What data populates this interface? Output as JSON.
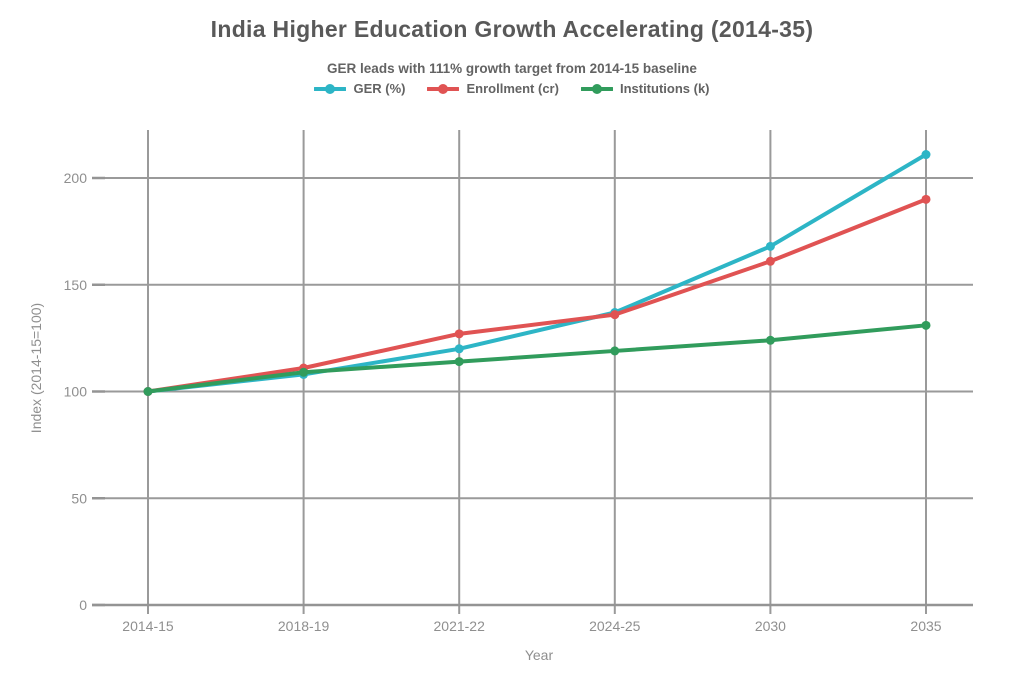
{
  "chart_data": {
    "type": "line",
    "title": "India Higher Education Growth Accelerating (2014-35)",
    "subtitle": "GER leads with 111% growth target from 2014-15 baseline",
    "xlabel": "Year",
    "ylabel": "Index (2014-15=100)",
    "categories": [
      "2014-15",
      "2018-19",
      "2021-22",
      "2024-25",
      "2030",
      "2035"
    ],
    "series": [
      {
        "name": "GER (%)",
        "color": "#2db5c6",
        "values": [
          100,
          108,
          120,
          137,
          168,
          211
        ]
      },
      {
        "name": "Enrollment (cr)",
        "color": "#e05353",
        "values": [
          100,
          111,
          127,
          136,
          161,
          190
        ]
      },
      {
        "name": "Institutions (k)",
        "color": "#319c5c",
        "values": [
          100,
          109,
          114,
          119,
          124,
          131
        ]
      }
    ],
    "yticks": [
      0,
      50,
      100,
      150,
      200
    ],
    "ylim": [
      0,
      222
    ],
    "grid": true,
    "legend_position": "top-center",
    "marker": "circle"
  },
  "style": {
    "background": "#ffffff",
    "grid_color": "#9a9a9a",
    "axis_color": "#949494",
    "tick_label_color": "#8f8f8f",
    "title_color": "#595959",
    "subtitle_color": "#636363",
    "legend_text_color": "#636363"
  }
}
